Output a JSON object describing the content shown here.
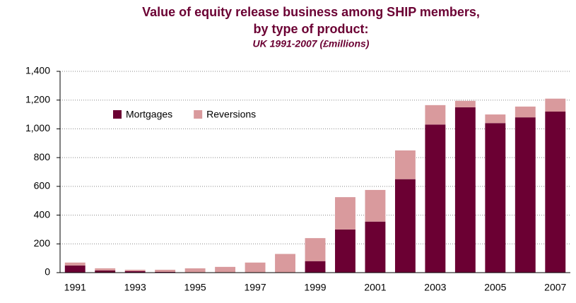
{
  "chart_data": {
    "type": "stacked_bar",
    "title": [
      "Value of equity release business among SHIP members,",
      "by type of product:"
    ],
    "subtitle": "UK 1991-2007 (£millions)",
    "categories": [
      "1991",
      null,
      "1993",
      null,
      "1995",
      null,
      "1997",
      null,
      "1999",
      null,
      "2001",
      null,
      "2003",
      null,
      "2005",
      null,
      "2007"
    ],
    "series": [
      {
        "name": "Mortgages",
        "color": "#6b0033",
        "values": [
          50,
          15,
          10,
          5,
          0,
          0,
          0,
          0,
          80,
          300,
          355,
          650,
          1030,
          1150,
          1040,
          1080,
          1120
        ]
      },
      {
        "name": "Reversions",
        "color": "#d99a9d",
        "values": [
          20,
          15,
          10,
          15,
          30,
          40,
          70,
          130,
          160,
          225,
          220,
          200,
          135,
          45,
          60,
          75,
          90
        ]
      }
    ],
    "ylim": [
      0,
      1400
    ],
    "yticks": [
      0,
      200,
      400,
      600,
      800,
      {
        "value": 1000,
        "label": "1,000"
      },
      {
        "value": 1200,
        "label": "1,200"
      },
      {
        "value": 1400,
        "label": "1,400"
      }
    ],
    "grid": true,
    "legend": "top-left"
  }
}
